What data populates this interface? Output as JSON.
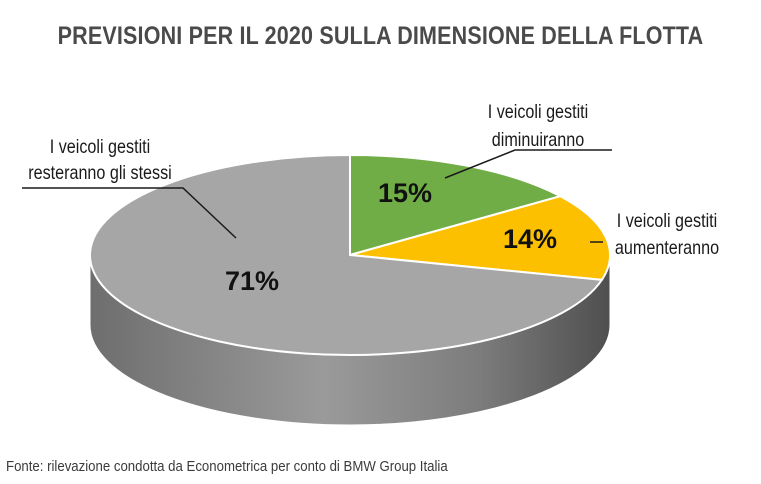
{
  "chart_data": {
    "type": "pie",
    "title": "PREVISIONI PER IL 2020 SULLA DIMENSIONE DELLA FLOTTA",
    "slices": [
      {
        "label_lines": [
          "I veicoli gestiti",
          "diminuiranno"
        ],
        "value": 15,
        "value_label": "15%",
        "color": "#71ad47"
      },
      {
        "label_lines": [
          "I veicoli gestiti",
          "aumenteranno"
        ],
        "value": 14,
        "value_label": "14%",
        "color": "#fdc000"
      },
      {
        "label_lines": [
          "I veicoli gestiti",
          "resteranno gli stessi"
        ],
        "value": 71,
        "value_label": "71%",
        "color": "#a6a6a6"
      }
    ]
  },
  "source": "Fonte: rilevazione condotta da Econometrica per conto di BMW Group Italia"
}
